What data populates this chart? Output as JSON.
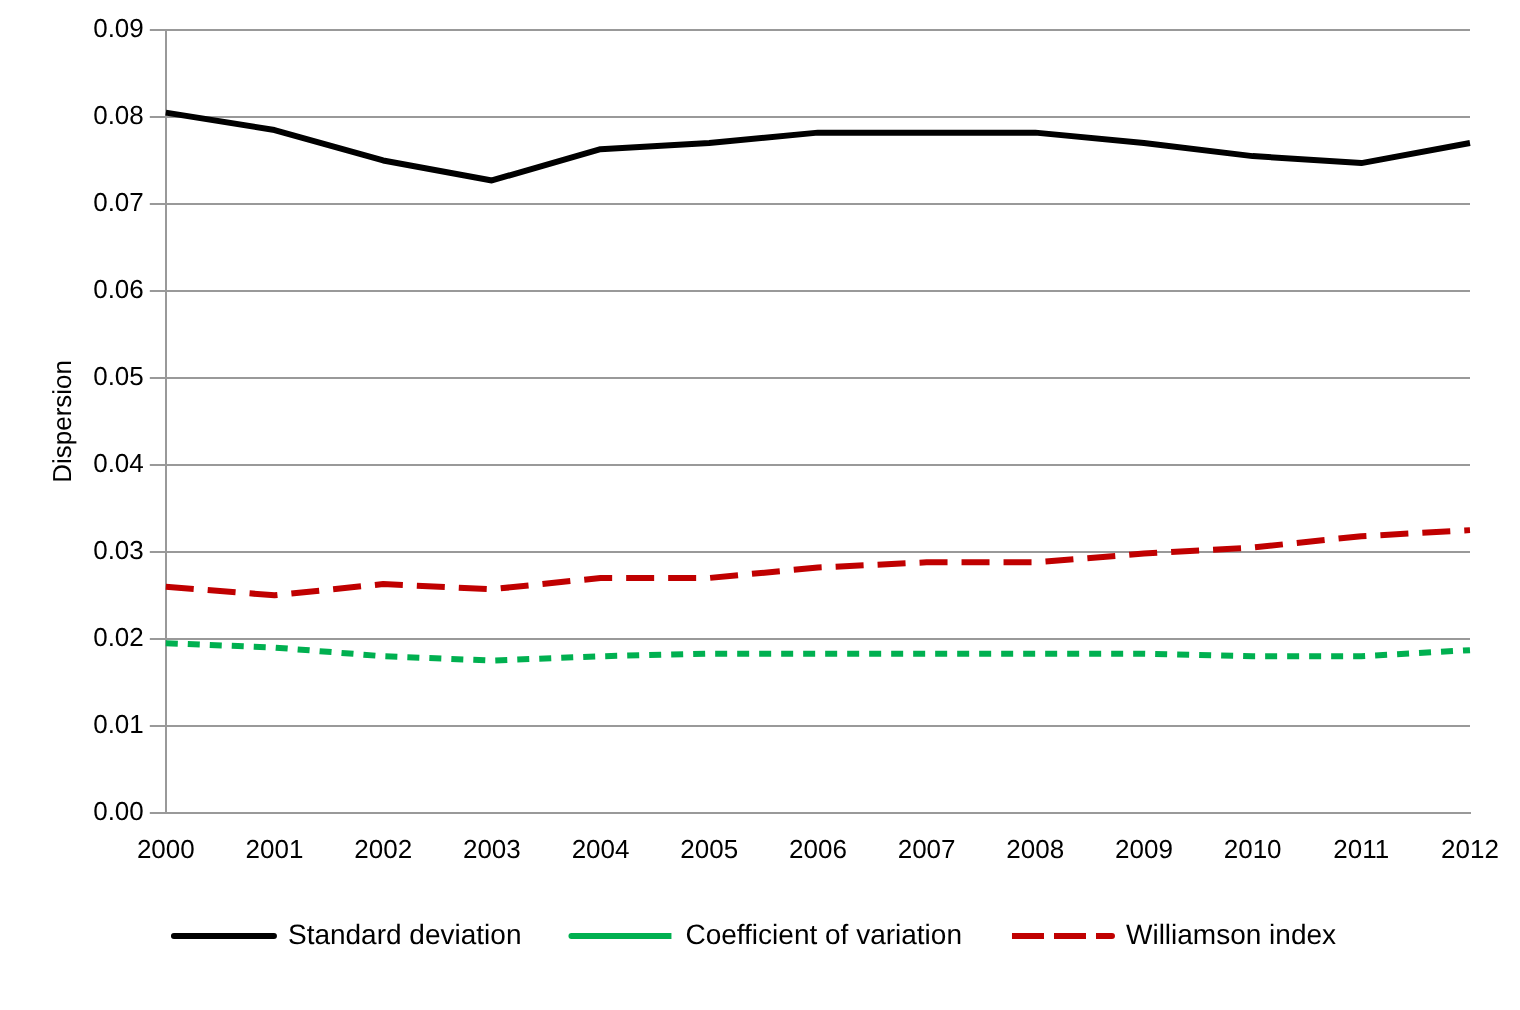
{
  "chart_data": {
    "type": "line",
    "ylabel": "Dispersion",
    "categories": [
      "2000",
      "2001",
      "2002",
      "2003",
      "2004",
      "2005",
      "2006",
      "2007",
      "2008",
      "2009",
      "2010",
      "2011",
      "2012"
    ],
    "series": [
      {
        "name": "Standard deviation",
        "color": "#000000",
        "line_style": "solid",
        "values": [
          0.0805,
          0.0785,
          0.075,
          0.0727,
          0.0763,
          0.077,
          0.0782,
          0.0782,
          0.0782,
          0.077,
          0.0755,
          0.0747,
          0.077
        ]
      },
      {
        "name": "Coefficient of variation",
        "color": "#00b050",
        "line_style": "dashed",
        "values": [
          0.0195,
          0.019,
          0.018,
          0.0175,
          0.018,
          0.0183,
          0.0183,
          0.0183,
          0.0183,
          0.0183,
          0.018,
          0.018,
          0.0187
        ]
      },
      {
        "name": "Williamson index",
        "color": "#c00000",
        "line_style": "dashed",
        "values": [
          0.026,
          0.025,
          0.0263,
          0.0257,
          0.027,
          0.027,
          0.0282,
          0.0288,
          0.0288,
          0.0298,
          0.0305,
          0.0318,
          0.0325
        ]
      }
    ],
    "ylim": [
      0,
      0.09
    ],
    "yticks": [
      {
        "value": 0,
        "label": "0.00"
      },
      {
        "value": 0.01,
        "label": "0.01"
      },
      {
        "value": 0.02,
        "label": "0.02"
      },
      {
        "value": 0.03,
        "label": "0.03"
      },
      {
        "value": 0.04,
        "label": "0.04"
      },
      {
        "value": 0.05,
        "label": "0.05"
      },
      {
        "value": 0.06,
        "label": "0.06"
      },
      {
        "value": 0.07,
        "label": "0.07"
      },
      {
        "value": 0.08,
        "label": "0.08"
      },
      {
        "value": 0.09,
        "label": "0.09"
      }
    ],
    "grid": "y",
    "legend": "bottom",
    "marker": "none"
  }
}
